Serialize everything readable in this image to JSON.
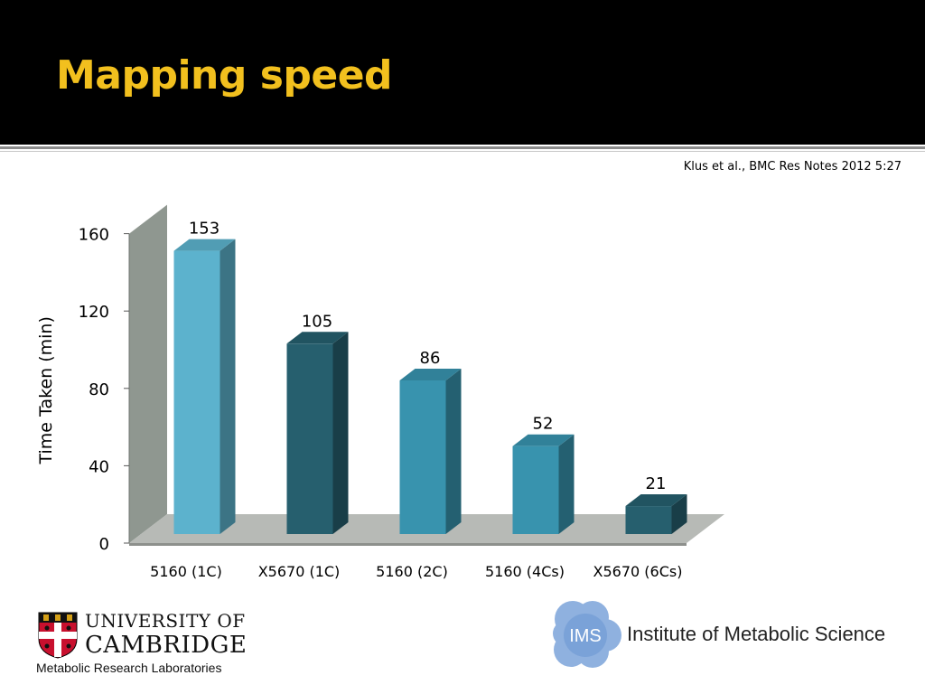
{
  "slide": {
    "title": "Mapping speed",
    "citation": "Klus et al., BMC Res Notes 2012 5:27"
  },
  "chart_data": {
    "type": "bar",
    "title": "",
    "xlabel": "",
    "ylabel": "Time Taken (min)",
    "categories": [
      "5160 (1C)",
      "X5670 (1C)",
      "5160 (2C)",
      "5160 (4Cs)",
      "X5670 (6Cs)"
    ],
    "values": [
      153,
      105,
      86,
      52,
      21
    ],
    "data_labels": [
      "153",
      "105",
      "86",
      "52",
      "21"
    ],
    "ylim": [
      0,
      160
    ],
    "yticks": [
      0,
      40,
      80,
      120,
      160
    ],
    "grid": false,
    "three_d": true,
    "bar_colors": [
      "#5cb2cd",
      "#265f6e",
      "#3893ae",
      "#3893ae",
      "#265f6e"
    ]
  },
  "logos": {
    "cambridge": {
      "line1": "UNIVERSITY OF",
      "line2": "CAMBRIDGE",
      "line3": "Metabolic Research Laboratories"
    },
    "ims": {
      "mark": "IMS",
      "name": "Institute of Metabolic Science"
    }
  },
  "colors": {
    "title": "#f2c01e",
    "header_bg": "#000000",
    "chart_wall": "#8f9790",
    "chart_floor": "#b7bab6",
    "ims_blue": "#7fa6d9"
  }
}
